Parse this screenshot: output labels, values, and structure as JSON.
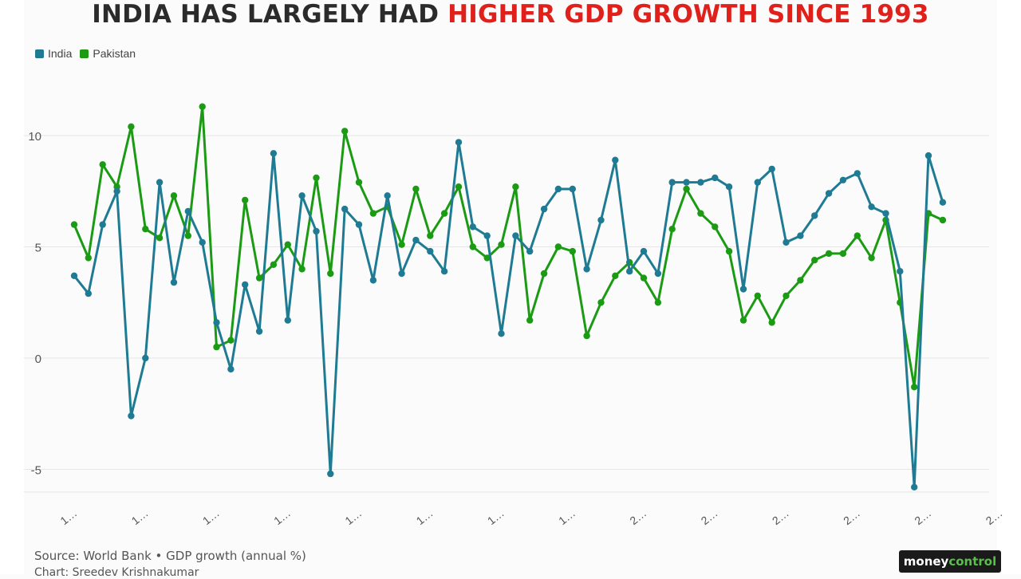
{
  "colors": {
    "india": "#1f7b93",
    "pakistan": "#1b9a13",
    "title_dark": "#2b2b2b",
    "title_red": "#e0201b",
    "grid": "#e6e6e6"
  },
  "header": {
    "title_part1": "INDIA HAS LARGELY HAD ",
    "title_part2": "HIGHER GDP GROWTH SINCE 1993"
  },
  "footer": {
    "source": "Source: World Bank • GDP growth (annual %)",
    "credit": "Chart: Sreedev Krishnakumar",
    "logo_part1": "money",
    "logo_part2": "control"
  },
  "chart_data": {
    "type": "line",
    "title": "INDIA HAS LARGELY HAD HIGHER GDP GROWTH SINCE 1993",
    "xlabel": "",
    "ylabel": "",
    "ylim": [
      -6,
      12
    ],
    "yticks": [
      10,
      5,
      0,
      -5
    ],
    "ytick_labels": [
      "10",
      "5",
      "0",
      "-5"
    ],
    "grid": true,
    "legend_position": "top-left",
    "xtick_labels": [
      "1…",
      "1…",
      "1…",
      "1…",
      "1…",
      "1…",
      "1…",
      "1…",
      "2…",
      "2…",
      "2…",
      "2…",
      "2…",
      "2…"
    ],
    "xtick_index": [
      0,
      5,
      10,
      15,
      20,
      25,
      30,
      35,
      40,
      45,
      50,
      55,
      60,
      65
    ],
    "series": [
      {
        "name": "India",
        "values": [
          3.7,
          2.9,
          6.0,
          7.5,
          -2.6,
          0.0,
          7.9,
          3.4,
          6.6,
          5.2,
          1.6,
          -0.5,
          3.3,
          1.2,
          9.2,
          1.7,
          7.3,
          5.7,
          -5.2,
          6.7,
          6.0,
          3.5,
          7.3,
          3.8,
          5.3,
          4.8,
          3.9,
          9.7,
          5.9,
          5.5,
          1.1,
          5.5,
          4.8,
          6.7,
          7.6,
          7.6,
          4.0,
          6.2,
          8.9,
          3.9,
          4.8,
          3.8,
          7.9,
          7.9,
          7.9,
          8.1,
          7.7,
          3.1,
          7.9,
          8.5,
          5.2,
          5.5,
          6.4,
          7.4,
          8.0,
          8.3,
          6.8,
          6.5,
          3.9,
          -5.8,
          9.1,
          7.0
        ]
      },
      {
        "name": "Pakistan",
        "values": [
          6.0,
          4.5,
          8.7,
          7.7,
          10.4,
          5.8,
          5.4,
          7.3,
          5.5,
          11.3,
          0.5,
          0.8,
          7.1,
          3.6,
          4.2,
          5.1,
          4.0,
          8.1,
          3.8,
          10.2,
          7.9,
          6.5,
          6.8,
          5.1,
          7.6,
          5.5,
          6.5,
          7.7,
          5.0,
          4.5,
          5.1,
          7.7,
          1.7,
          3.8,
          5.0,
          4.8,
          1.0,
          2.5,
          3.7,
          4.3,
          3.6,
          2.5,
          5.8,
          7.6,
          6.5,
          5.9,
          4.8,
          1.7,
          2.8,
          1.6,
          2.8,
          3.5,
          4.4,
          4.7,
          4.7,
          5.5,
          4.5,
          6.2,
          2.5,
          -1.3,
          6.5,
          6.2
        ]
      }
    ]
  }
}
